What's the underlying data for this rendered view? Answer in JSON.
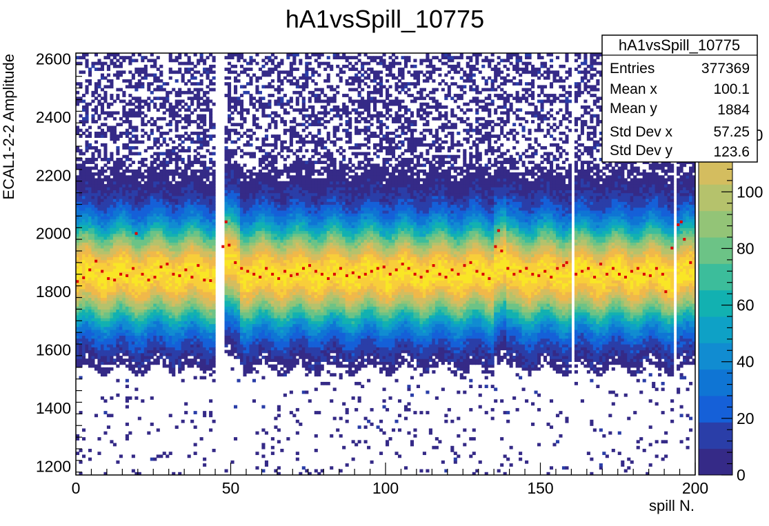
{
  "chart_data": {
    "type": "heatmap",
    "title": "hA1vsSpill_10775",
    "xlabel": "spill N.",
    "ylabel": "ECAL1-2-2 Amplitude",
    "xlim": [
      0,
      200
    ],
    "ylim": [
      1170,
      2620
    ],
    "zlim": [
      0,
      140
    ],
    "x_ticks": [
      0,
      50,
      100,
      150,
      200
    ],
    "y_ticks": [
      1200,
      1400,
      1600,
      1800,
      2000,
      2200,
      2400,
      2600
    ],
    "z_ticks": [
      0,
      20,
      40,
      60,
      80,
      100,
      120
    ],
    "grid": false,
    "palette": [
      "#352a87",
      "#2a3ea8",
      "#1560d8",
      "#0f75d4",
      "#118cd1",
      "#0ea1c6",
      "#12b1b1",
      "#3cbd9b",
      "#6cc386",
      "#93c477",
      "#b5c26c",
      "#d4bd5f",
      "#f0b84a",
      "#f8ce3a",
      "#f9e626"
    ],
    "profile_color": "#dd0000",
    "band_center": 1860,
    "empty_spills": [
      45,
      46,
      47,
      160,
      193
    ],
    "profile": [
      {
        "x": 0.5,
        "y": 1835
      },
      {
        "x": 2.5,
        "y": 1848
      },
      {
        "x": 4.5,
        "y": 1875
      },
      {
        "x": 6.5,
        "y": 1905
      },
      {
        "x": 8.5,
        "y": 1870
      },
      {
        "x": 10.5,
        "y": 1845
      },
      {
        "x": 12.5,
        "y": 1840
      },
      {
        "x": 14.5,
        "y": 1860
      },
      {
        "x": 16.5,
        "y": 1855
      },
      {
        "x": 18.5,
        "y": 1880
      },
      {
        "x": 19.5,
        "y": 2000
      },
      {
        "x": 21.5,
        "y": 1860
      },
      {
        "x": 23.5,
        "y": 1840
      },
      {
        "x": 25.5,
        "y": 1850
      },
      {
        "x": 27.5,
        "y": 1885
      },
      {
        "x": 29.5,
        "y": 1895
      },
      {
        "x": 31.5,
        "y": 1860
      },
      {
        "x": 33.5,
        "y": 1855
      },
      {
        "x": 35.5,
        "y": 1875
      },
      {
        "x": 37.5,
        "y": 1850
      },
      {
        "x": 39.5,
        "y": 1890
      },
      {
        "x": 41.5,
        "y": 1840
      },
      {
        "x": 43.5,
        "y": 1838
      },
      {
        "x": 47.5,
        "y": 1955
      },
      {
        "x": 48.5,
        "y": 2040
      },
      {
        "x": 49.5,
        "y": 1960
      },
      {
        "x": 51.5,
        "y": 1900
      },
      {
        "x": 53.5,
        "y": 1880
      },
      {
        "x": 55.5,
        "y": 1870
      },
      {
        "x": 57.5,
        "y": 1860
      },
      {
        "x": 59.5,
        "y": 1850
      },
      {
        "x": 61.5,
        "y": 1880
      },
      {
        "x": 63.5,
        "y": 1860
      },
      {
        "x": 65.5,
        "y": 1845
      },
      {
        "x": 67.5,
        "y": 1870
      },
      {
        "x": 69.5,
        "y": 1855
      },
      {
        "x": 71.5,
        "y": 1860
      },
      {
        "x": 73.5,
        "y": 1880
      },
      {
        "x": 75.5,
        "y": 1890
      },
      {
        "x": 77.5,
        "y": 1870
      },
      {
        "x": 79.5,
        "y": 1860
      },
      {
        "x": 81.5,
        "y": 1845
      },
      {
        "x": 83.5,
        "y": 1860
      },
      {
        "x": 85.5,
        "y": 1880
      },
      {
        "x": 87.5,
        "y": 1855
      },
      {
        "x": 89.5,
        "y": 1865
      },
      {
        "x": 91.5,
        "y": 1850
      },
      {
        "x": 93.5,
        "y": 1860
      },
      {
        "x": 95.5,
        "y": 1870
      },
      {
        "x": 97.5,
        "y": 1880
      },
      {
        "x": 99.5,
        "y": 1885
      },
      {
        "x": 101.5,
        "y": 1860
      },
      {
        "x": 103.5,
        "y": 1875
      },
      {
        "x": 105.5,
        "y": 1895
      },
      {
        "x": 107.5,
        "y": 1880
      },
      {
        "x": 109.5,
        "y": 1860
      },
      {
        "x": 111.5,
        "y": 1850
      },
      {
        "x": 113.5,
        "y": 1870
      },
      {
        "x": 115.5,
        "y": 1890
      },
      {
        "x": 117.5,
        "y": 1860
      },
      {
        "x": 119.5,
        "y": 1850
      },
      {
        "x": 121.5,
        "y": 1875
      },
      {
        "x": 123.5,
        "y": 1860
      },
      {
        "x": 125.5,
        "y": 1890
      },
      {
        "x": 127.5,
        "y": 1900
      },
      {
        "x": 129.5,
        "y": 1870
      },
      {
        "x": 131.5,
        "y": 1860
      },
      {
        "x": 133.5,
        "y": 1845
      },
      {
        "x": 135.5,
        "y": 1955
      },
      {
        "x": 136.5,
        "y": 2010
      },
      {
        "x": 137.5,
        "y": 1940
      },
      {
        "x": 139.5,
        "y": 1880
      },
      {
        "x": 141.5,
        "y": 1860
      },
      {
        "x": 143.5,
        "y": 1870
      },
      {
        "x": 145.5,
        "y": 1880
      },
      {
        "x": 147.5,
        "y": 1860
      },
      {
        "x": 149.5,
        "y": 1855
      },
      {
        "x": 151.5,
        "y": 1870
      },
      {
        "x": 153.5,
        "y": 1850
      },
      {
        "x": 155.5,
        "y": 1880
      },
      {
        "x": 157.5,
        "y": 1890
      },
      {
        "x": 158.5,
        "y": 1900
      },
      {
        "x": 161.5,
        "y": 1860
      },
      {
        "x": 163.5,
        "y": 1870
      },
      {
        "x": 165.5,
        "y": 1880
      },
      {
        "x": 167.5,
        "y": 1850
      },
      {
        "x": 169.5,
        "y": 1895
      },
      {
        "x": 171.5,
        "y": 1860
      },
      {
        "x": 173.5,
        "y": 1880
      },
      {
        "x": 175.5,
        "y": 1860
      },
      {
        "x": 177.5,
        "y": 1850
      },
      {
        "x": 179.5,
        "y": 1870
      },
      {
        "x": 181.5,
        "y": 1880
      },
      {
        "x": 183.5,
        "y": 1860
      },
      {
        "x": 185.5,
        "y": 1855
      },
      {
        "x": 187.5,
        "y": 1880
      },
      {
        "x": 189.5,
        "y": 1860
      },
      {
        "x": 190.5,
        "y": 1800
      },
      {
        "x": 192.5,
        "y": 1950
      },
      {
        "x": 194.5,
        "y": 2030
      },
      {
        "x": 195.5,
        "y": 2040
      },
      {
        "x": 196.5,
        "y": 1980
      },
      {
        "x": 198.5,
        "y": 1900
      }
    ]
  },
  "stats_box": {
    "title": "hA1vsSpill_10775",
    "rows": [
      {
        "label": "Entries",
        "value": "377369"
      },
      {
        "label": "Mean x",
        "value": "100.1"
      },
      {
        "label": "Mean y",
        "value": "1884"
      },
      {
        "label": "Std Dev x",
        "value": "57.25"
      },
      {
        "label": "Std Dev y",
        "value": "123.6"
      }
    ]
  }
}
